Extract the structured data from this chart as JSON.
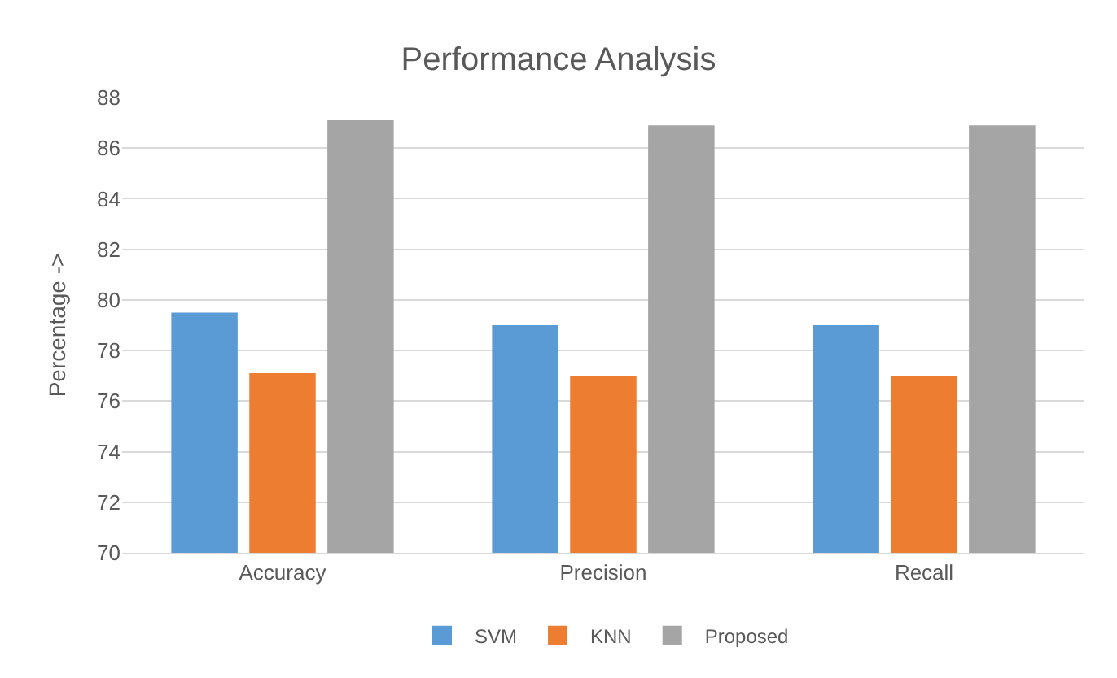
{
  "chart_data": {
    "type": "bar",
    "title": "Performance Analysis",
    "ylabel": "Percentage ->",
    "categories": [
      "Accuracy",
      "Precision",
      "Recall"
    ],
    "series": [
      {
        "name": "SVM",
        "color": "#5b9bd5",
        "values": [
          79.5,
          79.0,
          79.0
        ]
      },
      {
        "name": "KNN",
        "color": "#ed7d31",
        "values": [
          77.1,
          77.0,
          77.0
        ]
      },
      {
        "name": "Proposed",
        "color": "#a5a5a5",
        "values": [
          87.1,
          86.9,
          86.9
        ]
      }
    ],
    "ylim": [
      70,
      88
    ],
    "yticks": [
      70,
      72,
      74,
      76,
      78,
      80,
      82,
      84,
      86,
      88
    ],
    "grid": "y",
    "legend": "bottom"
  }
}
